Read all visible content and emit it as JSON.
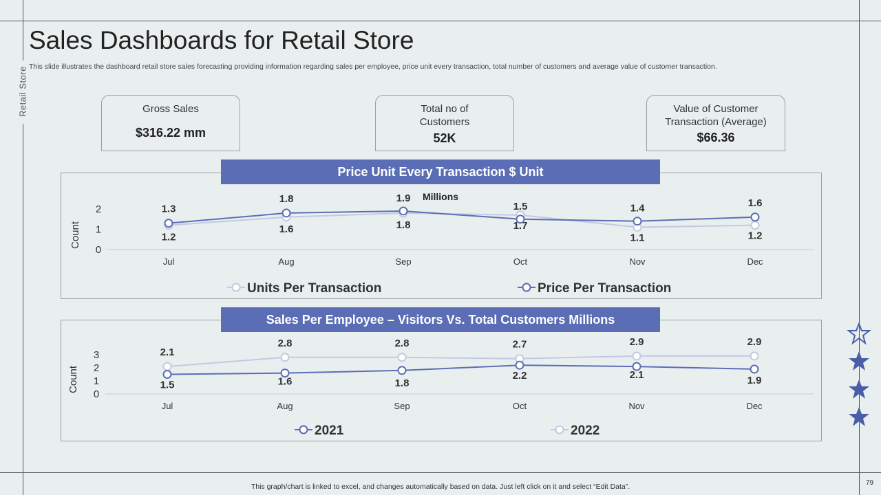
{
  "side_label": "Retail Store",
  "title": "Sales Dashboards for Retail Store",
  "subtitle": "This slide illustrates the dashboard retail store sales forecasting providing information regarding sales per employee, price unit every  transaction, total number of customers and average value of customer transaction.",
  "kpis": [
    {
      "label": "Gross Sales",
      "value": "$316.22 mm"
    },
    {
      "label": "Total no of Customers",
      "value": "52K"
    },
    {
      "label": "Value of Customer Transaction (Average)",
      "value": "$66.36"
    }
  ],
  "footer": "This graph/chart is linked to excel,  and changes automatically based on data. Just left click on it and select “Edit Data”.",
  "page_number": "79",
  "colors": {
    "dark_series": "#5b6eb5",
    "light_series": "#c3c9e3",
    "banner": "#5b6eb5"
  },
  "icons": [
    "star-outline-icon",
    "star-icon",
    "star-icon",
    "star-icon"
  ],
  "chart_data": [
    {
      "type": "line",
      "banner": "Price Unit Every Transaction $ Unit",
      "note": "Millions",
      "ylabel": "Count",
      "ylim": [
        0,
        2
      ],
      "yticks": [
        0,
        1,
        2
      ],
      "categories": [
        "Jul",
        "Aug",
        "Sep",
        "Oct",
        "Nov",
        "Dec"
      ],
      "series": [
        {
          "name": "Units Per Transaction",
          "style": "light",
          "values": [
            1.2,
            1.6,
            1.8,
            1.7,
            1.1,
            1.2
          ]
        },
        {
          "name": "Price Per Transaction",
          "style": "dark",
          "values": [
            1.3,
            1.8,
            1.9,
            1.5,
            1.4,
            1.6
          ]
        }
      ],
      "legend": "bottom"
    },
    {
      "type": "line",
      "banner": "Sales Per Employee – Visitors Vs. Total Customers Millions",
      "ylabel": "Count",
      "ylim": [
        0,
        3
      ],
      "yticks": [
        0,
        1,
        2,
        3
      ],
      "categories": [
        "Jul",
        "Aug",
        "Sep",
        "Oct",
        "Nov",
        "Dec"
      ],
      "series": [
        {
          "name": "2021",
          "style": "dark",
          "values": [
            1.5,
            1.6,
            1.8,
            2.2,
            2.1,
            1.9
          ]
        },
        {
          "name": "2022",
          "style": "light",
          "values": [
            2.1,
            2.8,
            2.8,
            2.7,
            2.9,
            2.9
          ]
        }
      ],
      "legend": "bottom"
    }
  ]
}
